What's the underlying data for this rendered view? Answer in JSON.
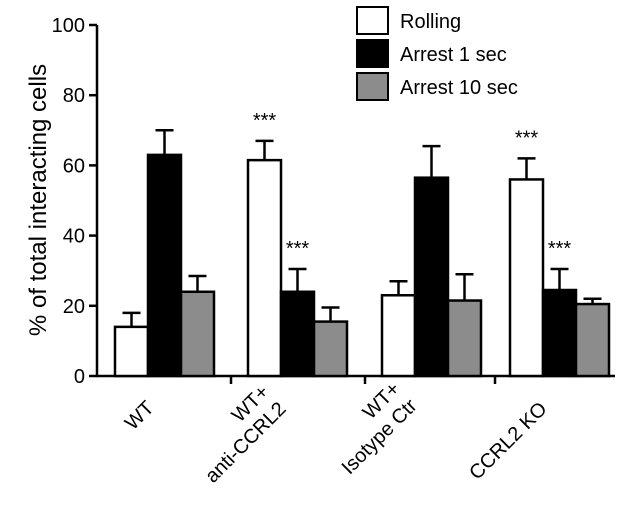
{
  "chart_data": {
    "type": "bar",
    "title": "",
    "ylabel": "% of total interacting cells",
    "xlabel": "",
    "ylim": [
      0,
      100
    ],
    "yticks": [
      0,
      20,
      40,
      60,
      80,
      100
    ],
    "grid": false,
    "legend_placement": "top-right",
    "categories": [
      [
        "WT"
      ],
      [
        "WT+",
        "anti-CCRL2"
      ],
      [
        "WT+",
        "Isotype Ctr"
      ],
      [
        "CCRL2 KO"
      ]
    ],
    "series": [
      {
        "name": "Rolling",
        "color": "#ffffff",
        "values": [
          14,
          61.5,
          23,
          56
        ],
        "errors": [
          4,
          5.5,
          4,
          6
        ],
        "significance": [
          "",
          "***",
          "",
          "***"
        ]
      },
      {
        "name": "Arrest 1 sec",
        "color": "#000000",
        "values": [
          63,
          24,
          56.5,
          24.5
        ],
        "errors": [
          7,
          6.5,
          9,
          6
        ],
        "significance": [
          "",
          "***",
          "",
          "***"
        ]
      },
      {
        "name": "Arrest 10 sec",
        "color": "#8c8c8c",
        "values": [
          24,
          15.5,
          21.5,
          20.5
        ],
        "errors": [
          4.5,
          4,
          7.5,
          1.5
        ],
        "significance": [
          "",
          "",
          "",
          ""
        ]
      }
    ]
  }
}
